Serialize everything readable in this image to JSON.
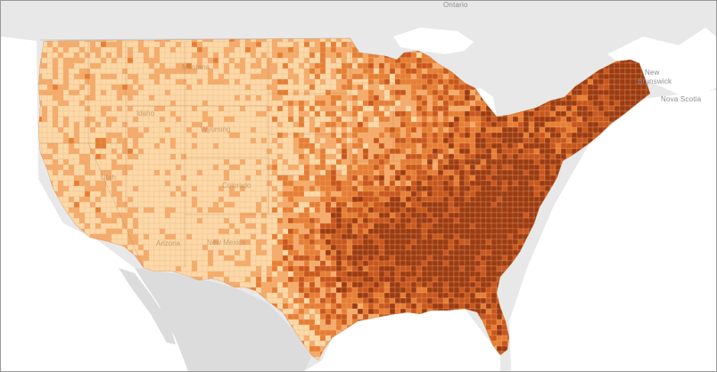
{
  "map": {
    "labels": {
      "ontario": "Ontario",
      "new_brunswick_line1": "New",
      "new_brunswick_line2": "Brunswick",
      "nova_scotia": "Nova Scotia"
    },
    "state_labels": {
      "montana": "Montana",
      "idaho": "Idaho",
      "wyoming": "Wyoming",
      "colorado": "Colorado",
      "arizona": "Arizona",
      "new_mexico": "New Mexico",
      "utah": "Utah"
    },
    "colors": {
      "water": "#ffffff",
      "land_neighbor": "#dcdcdc",
      "land_outside": "#e8e8e8",
      "border": "#c9c9c9",
      "class_1": "#fdd9a8",
      "class_2": "#f5ab6a",
      "class_3": "#e67e34",
      "class_4": "#c8571d",
      "class_5": "#9c3b12"
    }
  }
}
